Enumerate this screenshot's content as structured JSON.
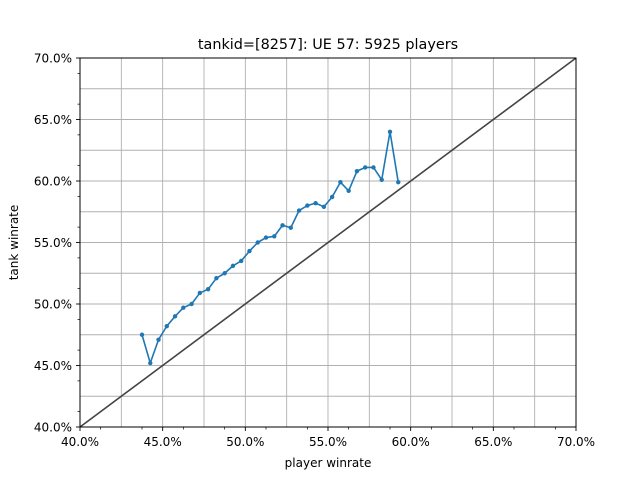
{
  "chart_data": {
    "type": "line",
    "title": "tankid=[8257]: UE 57: 5925 players",
    "xlabel": "player winrate",
    "ylabel": "tank winrate",
    "xlim": [
      0.4,
      0.7
    ],
    "ylim": [
      0.4,
      0.7
    ],
    "xticks": [
      0.4,
      0.45,
      0.5,
      0.55,
      0.6,
      0.65,
      0.7
    ],
    "xtick_labels": [
      "40.0%",
      "45.0%",
      "50.0%",
      "55.0%",
      "60.0%",
      "65.0%",
      "70.0%"
    ],
    "yticks": [
      0.4,
      0.45,
      0.5,
      0.55,
      0.6,
      0.65,
      0.7
    ],
    "ytick_labels": [
      "40.0%",
      "45.0%",
      "50.0%",
      "55.0%",
      "60.0%",
      "65.0%",
      "70.0%"
    ],
    "grid": true,
    "grid_step": 0.025,
    "series": [
      {
        "color": "#1f77b4",
        "marker": "dot",
        "x": [
          0.4375,
          0.4425,
          0.4475,
          0.4525,
          0.4575,
          0.4625,
          0.4675,
          0.4725,
          0.4775,
          0.4825,
          0.4875,
          0.4925,
          0.4975,
          0.5025,
          0.5075,
          0.5125,
          0.5175,
          0.5225,
          0.5275,
          0.5325,
          0.5375,
          0.5425,
          0.5475,
          0.5525,
          0.5575,
          0.5625,
          0.5675,
          0.5725,
          0.5775,
          0.5825,
          0.5875,
          0.5925
        ],
        "y": [
          0.475,
          0.452,
          0.471,
          0.482,
          0.49,
          0.497,
          0.5,
          0.509,
          0.512,
          0.521,
          0.525,
          0.531,
          0.535,
          0.543,
          0.55,
          0.554,
          0.555,
          0.564,
          0.562,
          0.576,
          0.58,
          0.582,
          0.579,
          0.587,
          0.599,
          0.592,
          0.608,
          0.611,
          0.611,
          0.601,
          0.64,
          0.599
        ]
      }
    ],
    "reference_line": {
      "color": "#444444",
      "x": [
        0.4,
        0.7
      ],
      "y": [
        0.4,
        0.7
      ]
    }
  }
}
